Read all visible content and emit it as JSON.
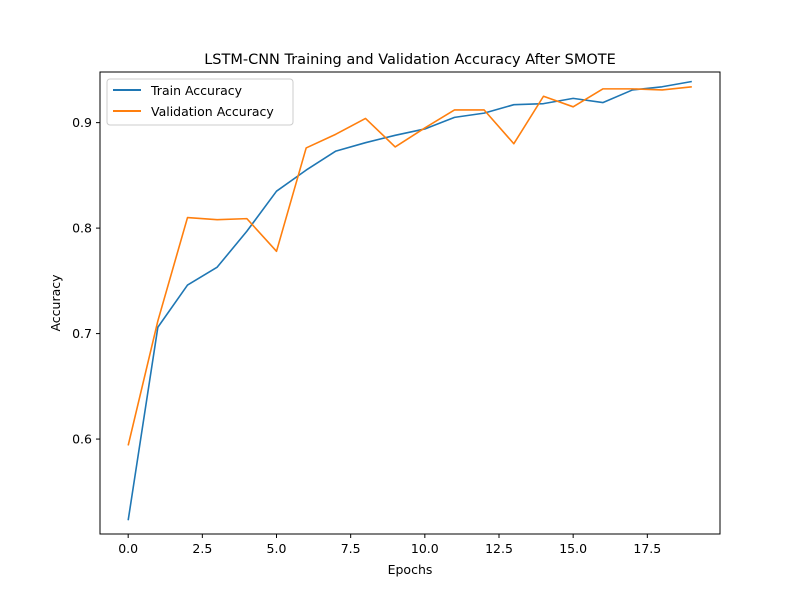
{
  "chart_data": {
    "type": "line",
    "title": "LSTM-CNN Training and Validation Accuracy After SMOTE",
    "xlabel": "Epochs",
    "ylabel": "Accuracy",
    "xlim": [
      -0.95,
      19.95
    ],
    "ylim": [
      0.51,
      0.948
    ],
    "x_ticks": [
      0.0,
      2.5,
      5.0,
      7.5,
      10.0,
      12.5,
      15.0,
      17.5
    ],
    "x_tick_labels": [
      "0.0",
      "2.5",
      "5.0",
      "7.5",
      "10.0",
      "12.5",
      "15.0",
      "17.5"
    ],
    "y_ticks": [
      0.6,
      0.7,
      0.8,
      0.9
    ],
    "y_tick_labels": [
      "0.6",
      "0.7",
      "0.8",
      "0.9"
    ],
    "grid": false,
    "legend_position": "top-left",
    "x": [
      0,
      1,
      2,
      3,
      4,
      5,
      6,
      7,
      8,
      9,
      10,
      11,
      12,
      13,
      14,
      15,
      16,
      17,
      18,
      19
    ],
    "series": [
      {
        "name": "Train Accuracy",
        "color": "#1f77b4",
        "values": [
          0.523,
          0.706,
          0.746,
          0.763,
          0.797,
          0.835,
          0.855,
          0.873,
          0.881,
          0.888,
          0.894,
          0.905,
          0.909,
          0.917,
          0.918,
          0.923,
          0.919,
          0.931,
          0.934,
          0.939
        ]
      },
      {
        "name": "Validation Accuracy",
        "color": "#ff7f0e",
        "values": [
          0.594,
          0.712,
          0.81,
          0.808,
          0.809,
          0.778,
          0.876,
          0.889,
          0.904,
          0.877,
          0.895,
          0.912,
          0.912,
          0.88,
          0.925,
          0.915,
          0.932,
          0.932,
          0.931,
          0.934
        ]
      }
    ]
  }
}
